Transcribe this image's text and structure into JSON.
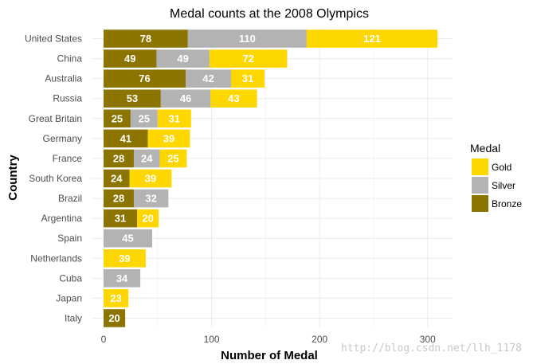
{
  "chart_data": {
    "type": "bar",
    "orientation": "horizontal",
    "stacked": true,
    "title": "Medal counts at the 2008 Olympics",
    "xlabel": "Number of Medal",
    "ylabel": "Country",
    "xlim": [
      0,
      320
    ],
    "x_ticks": [
      0,
      100,
      200,
      300
    ],
    "grid": true,
    "legend": {
      "title": "Medal",
      "position": "right"
    },
    "categories": [
      "United States",
      "China",
      "Australia",
      "Russia",
      "Great Britain",
      "Germany",
      "France",
      "South Korea",
      "Brazil",
      "Argentina",
      "Spain",
      "Netherlands",
      "Cuba",
      "Japan",
      "Italy"
    ],
    "series": [
      {
        "name": "Bronze",
        "color": "#8b7500",
        "values": [
          78,
          49,
          76,
          53,
          25,
          41,
          28,
          24,
          28,
          31,
          0,
          0,
          0,
          0,
          20
        ]
      },
      {
        "name": "Silver",
        "color": "#b3b3b3",
        "values": [
          110,
          49,
          42,
          46,
          25,
          0,
          24,
          0,
          32,
          0,
          45,
          0,
          34,
          0,
          0
        ]
      },
      {
        "name": "Gold",
        "color": "#ffd700",
        "values": [
          121,
          72,
          31,
          43,
          31,
          39,
          25,
          39,
          0,
          20,
          0,
          39,
          0,
          23,
          0
        ]
      }
    ],
    "legend_order": [
      "Gold",
      "Silver",
      "Bronze"
    ]
  },
  "watermark": "http://blog.csdn.net/llh_1178"
}
